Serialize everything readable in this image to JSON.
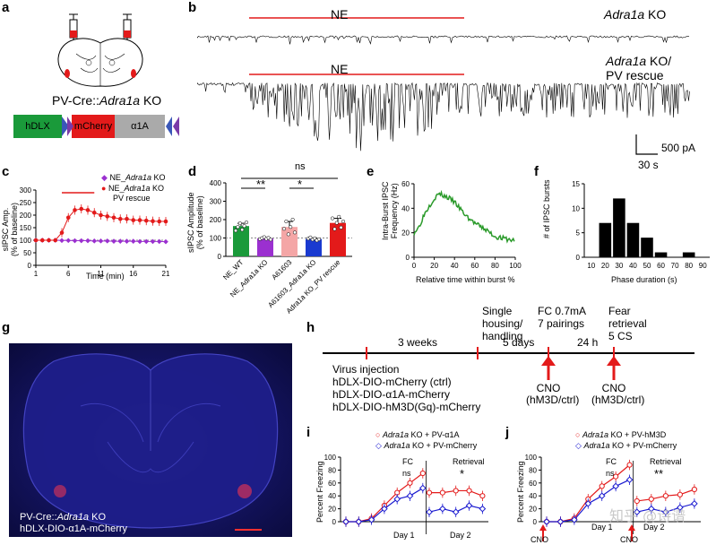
{
  "panels": {
    "a": "a",
    "b": "b",
    "c": "c",
    "d": "d",
    "e": "e",
    "f": "f",
    "g": "g",
    "h": "h",
    "i": "i",
    "j": "j"
  },
  "panel_a": {
    "title_prefix": "PV-Cre::",
    "title_gene": "Adra1a",
    "title_suffix": " KO",
    "construct": [
      "hDLX",
      "mCherry",
      "α1A"
    ],
    "colors": {
      "hdlx": "#1a9a3a",
      "mcherry": "#e31a1a",
      "a1a": "#aaaaaa",
      "flank_blue": "#3a57b8",
      "flank_purple": "#7a3aa8"
    }
  },
  "panel_b": {
    "top_ne": "NE",
    "top_label_gene": "Adra1a",
    "top_label_suffix": " KO",
    "bottom_ne": "NE",
    "bottom_label_gene": "Adra1a",
    "bottom_label_line1": " KO/",
    "bottom_label_line2": "PV rescue",
    "scale_y": "500 pA",
    "scale_x": "30 s"
  },
  "panel_c": {
    "legend": [
      {
        "prefix": "NE_",
        "gene": "Adra1a",
        "suffix": " KO",
        "color": "#9b30d0"
      },
      {
        "prefix": "NE_",
        "gene": "Adra1a",
        "suffix": " KO",
        "color": "#e31a1a"
      }
    ],
    "legend_extra": "PV rescue",
    "ylabel_line1": "sIPSC Amp.",
    "ylabel_line2": "(% of baseline)",
    "xlabel": "Time (min)",
    "yticks": [
      "0",
      "50",
      "100",
      "150",
      "200",
      "250",
      "300"
    ],
    "xticks": [
      "1",
      "6",
      "11",
      "16",
      "21"
    ]
  },
  "panel_d": {
    "ylabel_line1": "sIPSC Amplitude",
    "ylabel_line2": "(% of baseline)",
    "ns": "ns",
    "sig1": "**",
    "sig2": "*",
    "yticks": [
      "0",
      "100",
      "200",
      "300",
      "400"
    ],
    "categories": [
      "NE_WT",
      "NE_Adra1a KO",
      "A61603",
      "A61603_Adra1a KO",
      "NE_Adra1a KO_PV rescue"
    ]
  },
  "panel_e": {
    "ylabel_line1": "Intra-Burst IPSC",
    "ylabel_line2": "Frequency (Hz)",
    "xlabel": "Relative time within burst %",
    "yticks": [
      "0",
      "20",
      "40",
      "60"
    ],
    "xticks": [
      "0",
      "20",
      "40",
      "60",
      "80",
      "100"
    ]
  },
  "panel_f": {
    "ylabel": "# of IPSC bursts",
    "xlabel": "Phase duration (s)",
    "yticks": [
      "0",
      "5",
      "10",
      "15"
    ],
    "xticks": [
      "10",
      "20",
      "30",
      "40",
      "50",
      "60",
      "70",
      "80",
      "90"
    ]
  },
  "panel_g": {
    "caption_prefix": "PV-Cre::",
    "caption_gene": "Adra1a",
    "caption_suffix": " KO",
    "caption_line2": "hDLX-DIO-α1A-mCherry"
  },
  "panel_h": {
    "top_labels": [
      "Single housing/ handling",
      "FC 0.7mA 7 pairings",
      "Fear retrieval 5 CS"
    ],
    "intervals": [
      "3 weeks",
      "5 days",
      "24 h"
    ],
    "virus_lines": [
      "Virus injection",
      "hDLX-DIO-mCherry (ctrl)",
      "hDLX-DIO-α1A-mCherry",
      "hDLX-DIO-hM3D(Gq)-mCherry"
    ],
    "cno1": [
      "CNO",
      "(hM3D/ctrl)"
    ],
    "cno2": [
      "CNO",
      "(hM3D/ctrl)"
    ]
  },
  "panel_i": {
    "legend": [
      {
        "gene": "Adra1a",
        "suffix": " KO + PV-α1A",
        "color": "#e31a1a"
      },
      {
        "gene": "Adra1a",
        "suffix": " KO + PV-mCherry",
        "color": "#1a1ad0"
      }
    ],
    "ylabel": "Percent Freezing",
    "fc": "FC",
    "retrieval": "Retrieval",
    "ns": "ns",
    "sig": "*",
    "day1": "Day 1",
    "day2": "Day 2",
    "yticks": [
      "0",
      "20",
      "40",
      "60",
      "80",
      "100"
    ]
  },
  "panel_j": {
    "legend": [
      {
        "gene": "Adra1a",
        "suffix": " KO + PV-hM3D",
        "color": "#e31a1a"
      },
      {
        "gene": "Adra1a",
        "suffix": " KO + PV-mCherry",
        "color": "#1a1ad0"
      }
    ],
    "ylabel": "Percent Freezing",
    "fc": "FC",
    "retrieval": "Retrieval",
    "ns": "ns",
    "sig": "**",
    "day1": "Day 1",
    "day2": "Day 2",
    "cno": "CNO",
    "watermark": "知乎 @诗谱",
    "yticks": [
      "0",
      "20",
      "40",
      "60",
      "80",
      "100"
    ]
  },
  "chart_data": [
    {
      "type": "line",
      "panel": "c",
      "x": [
        1,
        2,
        3,
        4,
        5,
        6,
        7,
        8,
        9,
        10,
        11,
        12,
        13,
        14,
        15,
        16,
        17,
        18,
        19,
        20,
        21
      ],
      "series": [
        {
          "name": "NE_Adra1a KO",
          "values": [
            100,
            100,
            100,
            100,
            99,
            99,
            98,
            98,
            98,
            97,
            97,
            97,
            96,
            96,
            96,
            96,
            95,
            95,
            95,
            95,
            94
          ]
        },
        {
          "name": "NE_Adra1a KO PV rescue",
          "values": [
            100,
            100,
            100,
            100,
            130,
            190,
            220,
            225,
            220,
            210,
            200,
            195,
            190,
            185,
            185,
            180,
            180,
            178,
            176,
            175,
            175
          ]
        }
      ],
      "xlabel": "Time (min)",
      "ylabel": "sIPSC Amp. (% of baseline)",
      "ylim": [
        0,
        300
      ]
    },
    {
      "type": "bar",
      "panel": "d",
      "categories": [
        "NE_WT",
        "NE_Adra1a KO",
        "A61603",
        "A61603_Adra1a KO",
        "NE_Adra1a KO_PV rescue"
      ],
      "values": [
        165,
        98,
        160,
        95,
        182
      ],
      "errors": [
        15,
        4,
        30,
        5,
        25
      ],
      "colors": [
        "#1a9a3a",
        "#9b30d0",
        "#f4a6a6",
        "#1a3ad0",
        "#e31a1a"
      ],
      "ylabel": "sIPSC Amplitude (% of baseline)",
      "ylim": [
        0,
        400
      ]
    },
    {
      "type": "line",
      "panel": "e",
      "x": [
        0,
        5,
        10,
        15,
        20,
        25,
        30,
        35,
        40,
        45,
        50,
        55,
        60,
        65,
        70,
        75,
        80,
        85,
        90,
        95,
        100
      ],
      "values": [
        20,
        25,
        35,
        42,
        48,
        52,
        50,
        48,
        45,
        40,
        35,
        31,
        28,
        25,
        23,
        20,
        17,
        16,
        15,
        14,
        14
      ],
      "xlabel": "Relative time within burst %",
      "ylabel": "Intra-Burst IPSC Frequency (Hz)",
      "ylim": [
        0,
        60
      ]
    },
    {
      "type": "bar",
      "panel": "f",
      "categories": [
        "20",
        "30",
        "40",
        "50",
        "60",
        "80"
      ],
      "values": [
        7,
        12,
        7,
        4,
        1,
        1
      ],
      "xlabel": "Phase duration (s)",
      "ylabel": "# of IPSC bursts",
      "ylim": [
        0,
        15
      ]
    },
    {
      "type": "line",
      "panel": "i",
      "x": [
        1,
        2,
        3,
        4,
        5,
        6,
        7,
        8,
        9,
        10,
        11,
        12
      ],
      "series": [
        {
          "name": "Adra1a KO + PV-α1A",
          "values": [
            0,
            0,
            5,
            25,
            45,
            60,
            75,
            45,
            45,
            48,
            48,
            40
          ]
        },
        {
          "name": "Adra1a KO + PV-mCherry",
          "values": [
            0,
            0,
            3,
            20,
            35,
            40,
            52,
            15,
            20,
            15,
            25,
            20
          ]
        }
      ],
      "ylabel": "Percent Freezing",
      "ylim": [
        0,
        100
      ]
    },
    {
      "type": "line",
      "panel": "j",
      "x": [
        1,
        2,
        3,
        4,
        5,
        6,
        7,
        8,
        9,
        10,
        11,
        12
      ],
      "series": [
        {
          "name": "Adra1a KO + PV-hM3D",
          "values": [
            0,
            0,
            5,
            35,
            55,
            70,
            88,
            32,
            35,
            40,
            42,
            50
          ]
        },
        {
          "name": "Adra1a KO + PV-mCherry",
          "values": [
            0,
            0,
            3,
            28,
            40,
            55,
            65,
            15,
            20,
            15,
            22,
            28
          ]
        }
      ],
      "ylabel": "Percent Freezing",
      "ylim": [
        0,
        100
      ]
    }
  ]
}
